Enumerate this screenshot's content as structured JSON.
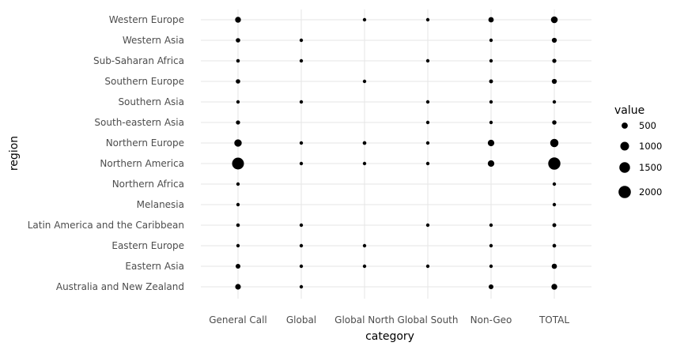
{
  "chart_data": {
    "type": "scatter",
    "xlabel": "category",
    "ylabel": "region",
    "categories": [
      "General Call",
      "Global",
      "Global North",
      "Global South",
      "Non-Geo",
      "TOTAL"
    ],
    "regions": [
      "Australia and New Zealand",
      "Eastern Asia",
      "Eastern Europe",
      "Latin America and the Caribbean",
      "Melanesia",
      "Northern Africa",
      "Northern America",
      "Northern Europe",
      "South-eastern Asia",
      "Southern Asia",
      "Southern Europe",
      "Sub-Saharan Africa",
      "Western Asia",
      "Western Europe"
    ],
    "size_legend": {
      "title": "value",
      "entries": [
        500,
        1000,
        1500,
        2000
      ],
      "placement": "right"
    },
    "grid": true,
    "points": [
      {
        "region": "Western Europe",
        "category": "General Call",
        "value": 450
      },
      {
        "region": "Western Europe",
        "category": "Global North",
        "value": 70
      },
      {
        "region": "Western Europe",
        "category": "Global South",
        "value": 70
      },
      {
        "region": "Western Europe",
        "category": "Non-Geo",
        "value": 380
      },
      {
        "region": "Western Europe",
        "category": "TOTAL",
        "value": 600
      },
      {
        "region": "Western Asia",
        "category": "General Call",
        "value": 260
      },
      {
        "region": "Western Asia",
        "category": "Global",
        "value": 60
      },
      {
        "region": "Western Asia",
        "category": "Non-Geo",
        "value": 140
      },
      {
        "region": "Western Asia",
        "category": "TOTAL",
        "value": 320
      },
      {
        "region": "Sub-Saharan Africa",
        "category": "General Call",
        "value": 170
      },
      {
        "region": "Sub-Saharan Africa",
        "category": "Global",
        "value": 50
      },
      {
        "region": "Sub-Saharan Africa",
        "category": "Global South",
        "value": 90
      },
      {
        "region": "Sub-Saharan Africa",
        "category": "Non-Geo",
        "value": 120
      },
      {
        "region": "Sub-Saharan Africa",
        "category": "TOTAL",
        "value": 230
      },
      {
        "region": "Southern Europe",
        "category": "General Call",
        "value": 260
      },
      {
        "region": "Southern Europe",
        "category": "Global North",
        "value": 70
      },
      {
        "region": "Southern Europe",
        "category": "Non-Geo",
        "value": 200
      },
      {
        "region": "Southern Europe",
        "category": "TOTAL",
        "value": 330
      },
      {
        "region": "Southern Asia",
        "category": "General Call",
        "value": 100
      },
      {
        "region": "Southern Asia",
        "category": "Global",
        "value": 60
      },
      {
        "region": "Southern Asia",
        "category": "Global South",
        "value": 110
      },
      {
        "region": "Southern Asia",
        "category": "Non-Geo",
        "value": 110
      },
      {
        "region": "Southern Asia",
        "category": "TOTAL",
        "value": 160
      },
      {
        "region": "South-eastern Asia",
        "category": "General Call",
        "value": 230
      },
      {
        "region": "South-eastern Asia",
        "category": "Global South",
        "value": 80
      },
      {
        "region": "South-eastern Asia",
        "category": "Non-Geo",
        "value": 120
      },
      {
        "region": "South-eastern Asia",
        "category": "TOTAL",
        "value": 250
      },
      {
        "region": "Northern Europe",
        "category": "General Call",
        "value": 720
      },
      {
        "region": "Northern Europe",
        "category": "Global",
        "value": 90
      },
      {
        "region": "Northern Europe",
        "category": "Global North",
        "value": 180
      },
      {
        "region": "Northern Europe",
        "category": "Global South",
        "value": 100
      },
      {
        "region": "Northern Europe",
        "category": "Non-Geo",
        "value": 560
      },
      {
        "region": "Northern Europe",
        "category": "TOTAL",
        "value": 900
      },
      {
        "region": "Northern America",
        "category": "General Call",
        "value": 1850
      },
      {
        "region": "Northern America",
        "category": "Global",
        "value": 140
      },
      {
        "region": "Northern America",
        "category": "Global North",
        "value": 130
      },
      {
        "region": "Northern America",
        "category": "Global South",
        "value": 130
      },
      {
        "region": "Northern America",
        "category": "Non-Geo",
        "value": 560
      },
      {
        "region": "Northern America",
        "category": "TOTAL",
        "value": 1950
      },
      {
        "region": "Northern Africa",
        "category": "General Call",
        "value": 70
      },
      {
        "region": "Northern Africa",
        "category": "TOTAL",
        "value": 70
      },
      {
        "region": "Melanesia",
        "category": "General Call",
        "value": 50
      },
      {
        "region": "Melanesia",
        "category": "TOTAL",
        "value": 50
      },
      {
        "region": "Latin America and the Caribbean",
        "category": "General Call",
        "value": 170
      },
      {
        "region": "Latin America and the Caribbean",
        "category": "Global",
        "value": 70
      },
      {
        "region": "Latin America and the Caribbean",
        "category": "Global South",
        "value": 100
      },
      {
        "region": "Latin America and the Caribbean",
        "category": "Non-Geo",
        "value": 90
      },
      {
        "region": "Latin America and the Caribbean",
        "category": "TOTAL",
        "value": 200
      },
      {
        "region": "Eastern Europe",
        "category": "General Call",
        "value": 120
      },
      {
        "region": "Eastern Europe",
        "category": "Global",
        "value": 70
      },
      {
        "region": "Eastern Europe",
        "category": "Global North",
        "value": 70
      },
      {
        "region": "Eastern Europe",
        "category": "Non-Geo",
        "value": 100
      },
      {
        "region": "Eastern Europe",
        "category": "TOTAL",
        "value": 180
      },
      {
        "region": "Eastern Asia",
        "category": "General Call",
        "value": 300
      },
      {
        "region": "Eastern Asia",
        "category": "Global",
        "value": 80
      },
      {
        "region": "Eastern Asia",
        "category": "Global North",
        "value": 60
      },
      {
        "region": "Eastern Asia",
        "category": "Global South",
        "value": 90
      },
      {
        "region": "Eastern Asia",
        "category": "Non-Geo",
        "value": 150
      },
      {
        "region": "Eastern Asia",
        "category": "TOTAL",
        "value": 360
      },
      {
        "region": "Australia and New Zealand",
        "category": "General Call",
        "value": 420
      },
      {
        "region": "Australia and New Zealand",
        "category": "Global",
        "value": 70
      },
      {
        "region": "Australia and New Zealand",
        "category": "Non-Geo",
        "value": 300
      },
      {
        "region": "Australia and New Zealand",
        "category": "TOTAL",
        "value": 450
      }
    ]
  }
}
